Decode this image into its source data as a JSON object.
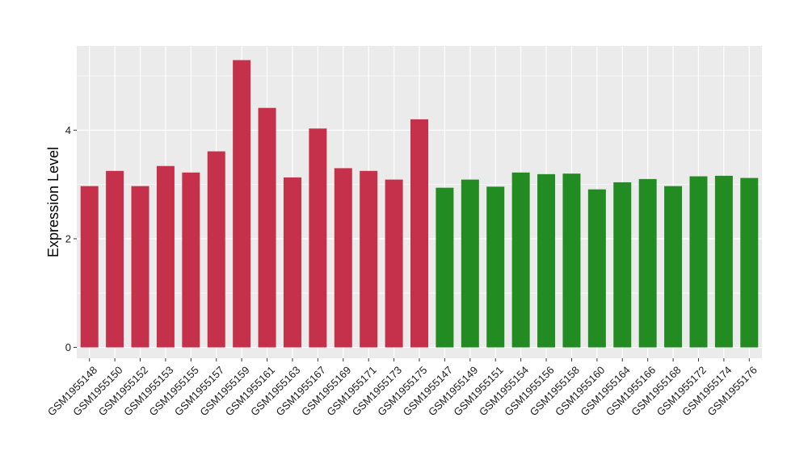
{
  "chart_data": {
    "type": "bar",
    "ylabel": "Expression Level",
    "xlabel": "",
    "title": "",
    "ylim": [
      -0.2,
      5.55
    ],
    "yticks": [
      0,
      2,
      4
    ],
    "grid": true,
    "legend": "none",
    "colors": {
      "group1": "#c5304a",
      "group2": "#228b22",
      "panel": "#ebebeb",
      "grid": "#ffffff"
    },
    "categories": [
      "GSM1955148",
      "GSM1955150",
      "GSM1955152",
      "GSM1955153",
      "GSM1955155",
      "GSM1955157",
      "GSM1955159",
      "GSM1955161",
      "GSM1955163",
      "GSM1955167",
      "GSM1955169",
      "GSM1955171",
      "GSM1955173",
      "GSM1955175",
      "GSM1955147",
      "GSM1955149",
      "GSM1955151",
      "GSM1955154",
      "GSM1955156",
      "GSM1955158",
      "GSM1955160",
      "GSM1955164",
      "GSM1955166",
      "GSM1955168",
      "GSM1955172",
      "GSM1955174",
      "GSM1955176"
    ],
    "values": [
      2.97,
      3.25,
      2.97,
      3.34,
      3.22,
      3.61,
      5.29,
      4.41,
      3.13,
      4.03,
      3.3,
      3.25,
      3.09,
      4.2,
      2.94,
      3.09,
      2.96,
      3.22,
      3.19,
      3.2,
      2.91,
      3.04,
      3.1,
      2.97,
      3.15,
      3.16,
      3.12
    ],
    "group": [
      "group1",
      "group1",
      "group1",
      "group1",
      "group1",
      "group1",
      "group1",
      "group1",
      "group1",
      "group1",
      "group1",
      "group1",
      "group1",
      "group1",
      "group2",
      "group2",
      "group2",
      "group2",
      "group2",
      "group2",
      "group2",
      "group2",
      "group2",
      "group2",
      "group2",
      "group2",
      "group2"
    ]
  }
}
